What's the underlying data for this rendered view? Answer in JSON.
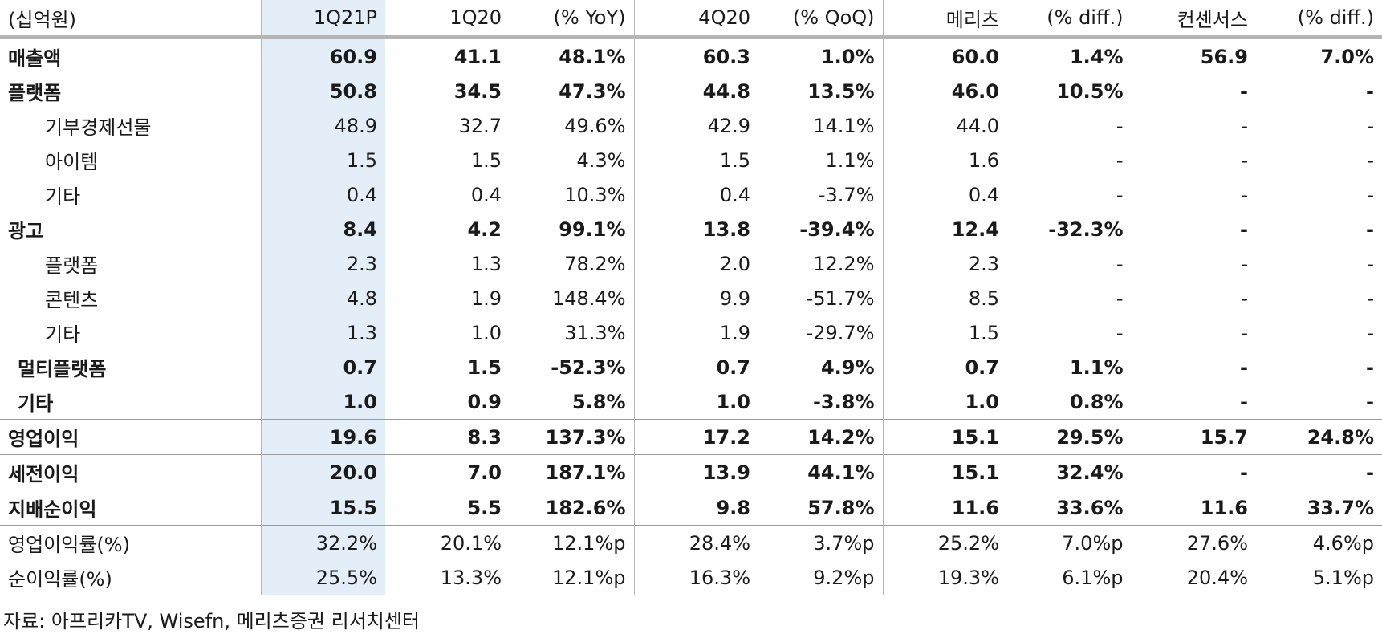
{
  "header": [
    "(십억원)",
    "1Q21P",
    "1Q20",
    "(% YoY)",
    "4Q20",
    "(% QoQ)",
    "메리츠",
    "(% diff.)",
    "컨센서스",
    "(% diff.)"
  ],
  "rows": [
    {
      "label": "매출액",
      "cells": [
        "60.9",
        "41.1",
        "48.1%",
        "60.3",
        "1.0%",
        "60.0",
        "1.4%",
        "56.9",
        "7.0%"
      ]
    },
    {
      "label": "플랫폼",
      "cells": [
        "50.8",
        "34.5",
        "47.3%",
        "44.8",
        "13.5%",
        "46.0",
        "10.5%",
        "-",
        "-"
      ]
    },
    {
      "label": "기부경제선물",
      "cells": [
        "48.9",
        "32.7",
        "49.6%",
        "42.9",
        "14.1%",
        "44.0",
        "-",
        "-",
        "-"
      ]
    },
    {
      "label": "아이템",
      "cells": [
        "1.5",
        "1.5",
        "4.3%",
        "1.5",
        "1.1%",
        "1.6",
        "-",
        "-",
        "-"
      ]
    },
    {
      "label": "기타",
      "cells": [
        "0.4",
        "0.4",
        "10.3%",
        "0.4",
        "-3.7%",
        "0.4",
        "-",
        "-",
        "-"
      ]
    },
    {
      "label": "광고",
      "cells": [
        "8.4",
        "4.2",
        "99.1%",
        "13.8",
        "-39.4%",
        "12.4",
        "-32.3%",
        "-",
        "-"
      ]
    },
    {
      "label": "플랫폼",
      "cells": [
        "2.3",
        "1.3",
        "78.2%",
        "2.0",
        "12.2%",
        "2.3",
        "-",
        "-",
        "-"
      ]
    },
    {
      "label": "콘텐츠",
      "cells": [
        "4.8",
        "1.9",
        "148.4%",
        "9.9",
        "-51.7%",
        "8.5",
        "-",
        "-",
        "-"
      ]
    },
    {
      "label": "기타",
      "cells": [
        "1.3",
        "1.0",
        "31.3%",
        "1.9",
        "-29.7%",
        "1.5",
        "-",
        "-",
        "-"
      ]
    },
    {
      "label": "멀티플랫폼",
      "cells": [
        "0.7",
        "1.5",
        "-52.3%",
        "0.7",
        "4.9%",
        "0.7",
        "1.1%",
        "-",
        "-"
      ]
    },
    {
      "label": "기타",
      "cells": [
        "1.0",
        "0.9",
        "5.8%",
        "1.0",
        "-3.8%",
        "1.0",
        "0.8%",
        "-",
        "-"
      ]
    },
    {
      "label": "영업이익",
      "cells": [
        "19.6",
        "8.3",
        "137.3%",
        "17.2",
        "14.2%",
        "15.1",
        "29.5%",
        "15.7",
        "24.8%"
      ]
    },
    {
      "label": "세전이익",
      "cells": [
        "20.0",
        "7.0",
        "187.1%",
        "13.9",
        "44.1%",
        "15.1",
        "32.4%",
        "-",
        "-"
      ]
    },
    {
      "label": "지배순이익",
      "cells": [
        "15.5",
        "5.5",
        "182.6%",
        "9.8",
        "57.8%",
        "11.6",
        "33.6%",
        "11.6",
        "33.7%"
      ]
    },
    {
      "label": "영업이익률(%)",
      "cells": [
        "32.2%",
        "20.1%",
        "12.1%p",
        "28.4%",
        "3.7%p",
        "25.2%",
        "7.0%p",
        "27.6%",
        "4.6%p"
      ]
    },
    {
      "label": "순이익률(%)",
      "cells": [
        "25.5%",
        "13.3%",
        "12.1%p",
        "16.3%",
        "9.2%p",
        "19.3%",
        "6.1%p",
        "20.4%",
        "5.1%p"
      ]
    }
  ],
  "source": "자료: 아프리카TV, Wisefn, 메리츠증권 리서치센터"
}
